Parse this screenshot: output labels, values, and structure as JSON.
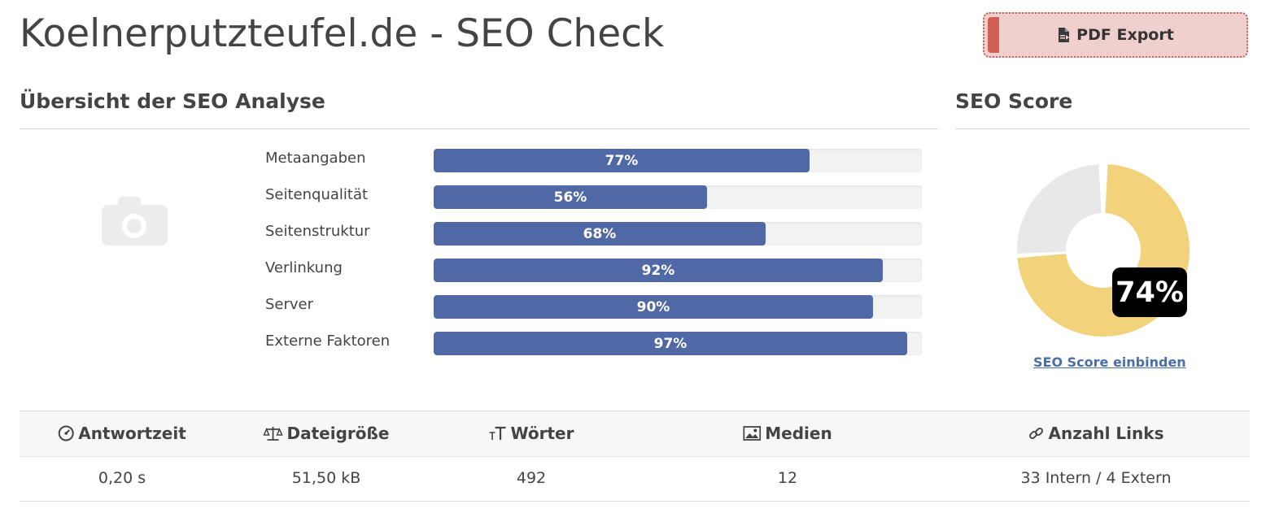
{
  "page": {
    "title": "Koelnerputzteufel.de - SEO Check",
    "pdf_export_label": "PDF Export"
  },
  "overview": {
    "heading": "Übersicht der SEO Analyse",
    "bars": [
      {
        "label": "Metaangaben",
        "value": 77,
        "value_text": "77%"
      },
      {
        "label": "Seitenqualität",
        "value": 56,
        "value_text": "56%"
      },
      {
        "label": "Seitenstruktur",
        "value": 68,
        "value_text": "68%"
      },
      {
        "label": "Verlinkung",
        "value": 92,
        "value_text": "92%"
      },
      {
        "label": "Server",
        "value": 90,
        "value_text": "90%"
      },
      {
        "label": "Externe Faktoren",
        "value": 97,
        "value_text": "97%"
      }
    ],
    "bar_color": "#5069a6"
  },
  "seo_score": {
    "heading": "SEO Score",
    "value": 74,
    "value_text": "74%",
    "embed_link": "SEO Score einbinden",
    "fill_color": "#f2d27a",
    "rest_color": "#e8e8e8"
  },
  "stats": {
    "headers": [
      {
        "label": "Antwortzeit",
        "icon": "gauge-icon"
      },
      {
        "label": "Dateigröße",
        "icon": "scale-icon"
      },
      {
        "label": "Wörter",
        "icon": "text-size-icon"
      },
      {
        "label": "Medien",
        "icon": "image-icon"
      },
      {
        "label": "Anzahl Links",
        "icon": "link-icon"
      }
    ],
    "values": [
      "0,20 s",
      "51,50 kB",
      "492",
      "12",
      "33 Intern / 4 Extern"
    ]
  }
}
